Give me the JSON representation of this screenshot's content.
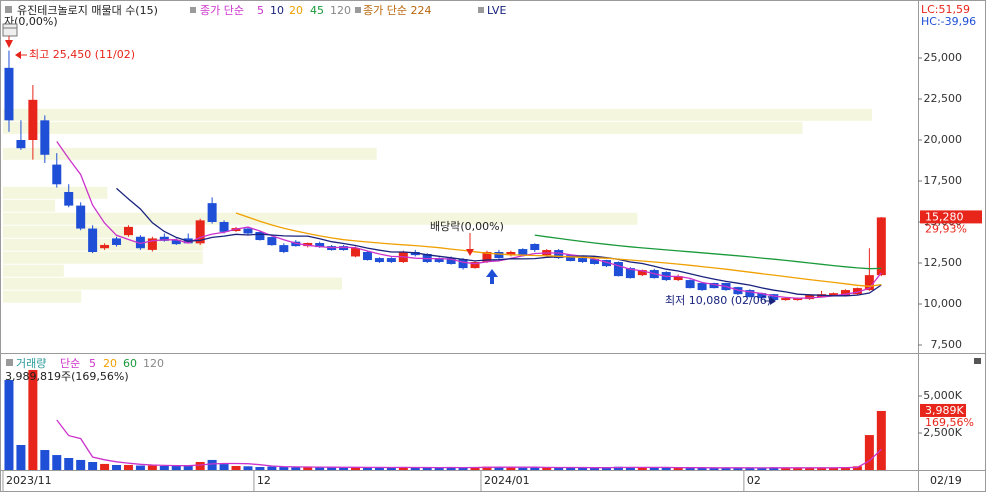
{
  "chart_data": [
    {
      "type": "candlestick",
      "title": "유진테크놀로지 매물대 수(15)",
      "legend_prefix": "종가 단순",
      "up_color": "#e8251b",
      "down_color": "#1e4fd6",
      "ylim": [
        7073,
        28537
      ],
      "yticks": [
        {
          "value": 7500,
          "label": "7,500"
        },
        {
          "value": 10000,
          "label": "10,000"
        },
        {
          "value": 12500,
          "label": "12,500"
        },
        {
          "value": 15000,
          "label": "15,000"
        },
        {
          "value": 17500,
          "label": "17,500"
        },
        {
          "value": 20000,
          "label": "20,000"
        },
        {
          "value": 22500,
          "label": "22,500"
        },
        {
          "value": 25000,
          "label": "25,000"
        }
      ],
      "open": [
        24400,
        20000,
        20000,
        21200,
        18500,
        16830,
        16000,
        14600,
        13400,
        14000,
        14200,
        14100,
        13300,
        14100,
        13900,
        14000,
        13700,
        16150,
        15000,
        14450,
        14600,
        14390,
        14080,
        13590,
        13800,
        13530,
        13720,
        13530,
        13530,
        12900,
        13170,
        12800,
        12800,
        12560,
        13170,
        13050,
        12800,
        12800,
        12740,
        12190,
        12560,
        13170,
        12980,
        13350,
        13660,
        12980,
        13290,
        12980,
        12800,
        12740,
        12680,
        12560,
        12190,
        11760,
        12070,
        11950,
        11460,
        11460,
        11280,
        11280,
        11280,
        11030,
        10850,
        10660,
        10600,
        10240,
        10240,
        10300,
        10420,
        10540,
        10480,
        10600,
        10850,
        11760
      ],
      "high": [
        25450,
        21200,
        23350,
        21500,
        19200,
        17300,
        16200,
        14800,
        13700,
        14100,
        14800,
        14200,
        14100,
        14300,
        14000,
        14300,
        15200,
        16500,
        15100,
        14700,
        14700,
        14450,
        14100,
        13700,
        13900,
        13750,
        13800,
        13600,
        13600,
        13500,
        13250,
        12850,
        12850,
        13250,
        13300,
        13100,
        12850,
        12900,
        12800,
        12600,
        13250,
        13300,
        13250,
        13400,
        13700,
        13350,
        13350,
        13000,
        12850,
        12800,
        12700,
        12600,
        12250,
        12100,
        12150,
        12000,
        11800,
        11500,
        11300,
        11300,
        11300,
        11050,
        10900,
        10700,
        10620,
        10400,
        10400,
        10600,
        10800,
        10700,
        10900,
        11000,
        13400,
        15300
      ],
      "low": [
        20500,
        19400,
        18800,
        18600,
        17100,
        15900,
        14500,
        13100,
        13300,
        13500,
        14100,
        13300,
        13200,
        13800,
        13600,
        13700,
        13600,
        14900,
        14300,
        14400,
        14200,
        13870,
        13550,
        13100,
        13500,
        13450,
        13420,
        13250,
        13250,
        12850,
        12650,
        12500,
        12500,
        12500,
        12900,
        12500,
        12500,
        12400,
        12100,
        12150,
        12500,
        12750,
        12900,
        12900,
        13170,
        12900,
        12750,
        12600,
        12500,
        12400,
        12250,
        11680,
        11550,
        11700,
        11550,
        11400,
        11400,
        10950,
        10800,
        10950,
        10800,
        10550,
        10400,
        10300,
        10080,
        10200,
        10200,
        10250,
        10400,
        10500,
        10450,
        10580,
        10800,
        11700
      ],
      "close": [
        21200,
        19500,
        22450,
        19100,
        17300,
        16000,
        14600,
        13170,
        13600,
        13600,
        14700,
        13400,
        14000,
        13850,
        13650,
        13700,
        15100,
        15000,
        14400,
        14630,
        14300,
        13900,
        13590,
        13170,
        13530,
        13720,
        13470,
        13290,
        13290,
        13410,
        12680,
        12560,
        12560,
        13170,
        12980,
        12560,
        12560,
        12440,
        12190,
        12560,
        13170,
        12800,
        13170,
        12980,
        13290,
        13290,
        12800,
        12620,
        12560,
        12440,
        12310,
        11700,
        11580,
        12070,
        11580,
        11460,
        11700,
        10970,
        10850,
        10970,
        10850,
        10600,
        10420,
        10360,
        10240,
        10360,
        10360,
        10540,
        10600,
        10660,
        10850,
        10970,
        11760,
        15280
      ],
      "lines": [
        {
          "name": "5",
          "color": "#cc33cc",
          "values": [
            null,
            null,
            null,
            null,
            19910,
            18870,
            17890,
            16030,
            14930,
            14190,
            13930,
            13690,
            13860,
            13910,
            13920,
            13720,
            14060,
            14260,
            14370,
            14570,
            14690,
            14450,
            14160,
            13920,
            13700,
            13580,
            13500,
            13440,
            13460,
            13440,
            13230,
            13050,
            12900,
            12880,
            12790,
            12770,
            12770,
            12740,
            12550,
            12460,
            12580,
            12630,
            12780,
            12940,
            13080,
            13110,
            13110,
            13000,
            12910,
            12740,
            12550,
            12330,
            12120,
            12020,
            11850,
            11680,
            11680,
            11560,
            11310,
            11190,
            11070,
            10850,
            10740,
            10640,
            10490,
            10400,
            10350,
            10370,
            10420,
            10500,
            10600,
            10720,
            10970,
            11900
          ]
        },
        {
          "name": "10",
          "color": "#1a237e",
          "values": [
            null,
            null,
            null,
            null,
            null,
            null,
            null,
            null,
            null,
            17050,
            16400,
            15790,
            14950,
            14420,
            14060,
            13830,
            13880,
            14060,
            14140,
            14250,
            14210,
            14260,
            14210,
            14150,
            14140,
            14140,
            13980,
            13800,
            13690,
            13570,
            13410,
            13280,
            13170,
            13170,
            13120,
            13000,
            12910,
            12820,
            12720,
            12630,
            12680,
            12700,
            12760,
            12750,
            12770,
            12850,
            12870,
            12890,
            12930,
            12910,
            12830,
            12720,
            12560,
            12470,
            12300,
            12120,
            12010,
            11840,
            11670,
            11520,
            11380,
            11270,
            11150,
            10980,
            10840,
            10740,
            10600,
            10560,
            10530,
            10500,
            10500,
            10540,
            10670,
            11160
          ]
        },
        {
          "name": "20",
          "color": "#f0a000",
          "values": [
            null,
            null,
            null,
            null,
            null,
            null,
            null,
            null,
            null,
            null,
            null,
            null,
            null,
            null,
            null,
            null,
            null,
            null,
            null,
            15550,
            15300,
            15050,
            14820,
            14620,
            14450,
            14300,
            14150,
            14030,
            13920,
            13850,
            13780,
            13720,
            13660,
            13610,
            13560,
            13500,
            13430,
            13350,
            13270,
            13180,
            13100,
            13050,
            13000,
            12980,
            12960,
            12940,
            12910,
            12880,
            12850,
            12820,
            12790,
            12740,
            12680,
            12620,
            12560,
            12500,
            12430,
            12360,
            12280,
            12200,
            12120,
            12030,
            11940,
            11850,
            11760,
            11670,
            11580,
            11490,
            11400,
            11320,
            11230,
            11140,
            11080,
            11180
          ]
        },
        {
          "name": "45",
          "color": "#1a9a3a",
          "values": [
            null,
            null,
            null,
            null,
            null,
            null,
            null,
            null,
            null,
            null,
            null,
            null,
            null,
            null,
            null,
            null,
            null,
            null,
            null,
            null,
            null,
            null,
            null,
            null,
            null,
            null,
            null,
            null,
            null,
            null,
            null,
            null,
            null,
            null,
            null,
            null,
            null,
            null,
            null,
            null,
            null,
            null,
            null,
            null,
            14200,
            14100,
            14000,
            13900,
            13810,
            13720,
            13640,
            13560,
            13490,
            13420,
            13360,
            13300,
            13240,
            13180,
            13120,
            13060,
            13000,
            12940,
            12870,
            12800,
            12730,
            12660,
            12580,
            12500,
            12420,
            12340,
            12270,
            12200,
            12150,
            12170
          ]
        }
      ],
      "inactive_legend": [
        {
          "name": "120",
          "color": "#888888"
        },
        {
          "name": "종가 단순 224",
          "color": "#b8660b"
        },
        {
          "name": "LVE",
          "color": "#1a237e"
        }
      ],
      "volume_profile": {
        "color": "#f4f7dd",
        "bins": [
          10080,
          10872,
          11664,
          12456,
          13248,
          14040,
          14832,
          15624,
          16416,
          17208,
          18000,
          18792,
          19584,
          20376,
          21168,
          21960
        ],
        "values": [
          9,
          39,
          7,
          23,
          23,
          15,
          73,
          6,
          12,
          0,
          0,
          43,
          0,
          92,
          100
        ]
      },
      "annotations": {
        "change": "자(0,00%)",
        "high": "최고 25,450 (11/02)",
        "dividend": "배당락(0,00%)",
        "low": "최저 10,080 (02/06)"
      },
      "stats": {
        "lc": "LC:51,59",
        "hc": "HC:-39,96"
      },
      "last_label": {
        "value": 15280,
        "label": "15,280"
      },
      "last_change": "29,93%"
    },
    {
      "type": "bar",
      "categories": [
        "2023/11",
        null,
        null,
        null,
        null,
        null,
        null,
        null,
        null,
        null,
        null,
        null,
        null,
        null,
        null,
        null,
        null,
        null,
        null,
        null,
        null,
        "12",
        null,
        null,
        null,
        null,
        null,
        null,
        null,
        null,
        null,
        null,
        null,
        null,
        null,
        null,
        null,
        null,
        null,
        null,
        "2024/01",
        null,
        null,
        null,
        null,
        null,
        null,
        null,
        null,
        null,
        null,
        null,
        null,
        null,
        null,
        null,
        null,
        null,
        null,
        null,
        null,
        null,
        "02",
        null,
        null,
        null,
        null,
        null,
        null,
        null,
        null,
        null,
        null,
        null
      ],
      "x_end_label": "02/19",
      "legend_title": "거래량",
      "legend_title_color": "#2a9a9a",
      "legend_prefix": "단순",
      "values": [
        6080,
        1690,
        6760,
        1350,
        1010,
        810,
        680,
        540,
        410,
        340,
        340,
        300,
        300,
        270,
        270,
        300,
        540,
        680,
        400,
        270,
        250,
        200,
        230,
        200,
        180,
        200,
        170,
        180,
        170,
        200,
        170,
        160,
        150,
        190,
        160,
        170,
        150,
        160,
        170,
        190,
        230,
        180,
        170,
        160,
        200,
        170,
        160,
        150,
        160,
        150,
        150,
        220,
        200,
        150,
        160,
        150,
        150,
        160,
        150,
        140,
        150,
        140,
        150,
        140,
        180,
        130,
        140,
        150,
        150,
        160,
        200,
        250,
        2360,
        3989
      ],
      "ylim": [
        0,
        7703
      ],
      "yticks": [
        {
          "value": 2500,
          "label": "2,500K"
        },
        {
          "value": 5000,
          "label": "5,000K"
        }
      ],
      "lines": [
        {
          "name": "5",
          "color": "#cc33cc",
          "values": [
            null,
            null,
            null,
            null,
            3378,
            2324,
            2122,
            878,
            690,
            556,
            462,
            386,
            338,
            310,
            296,
            288,
            336,
            412,
            438,
            438,
            428,
            360,
            270,
            230,
            212,
            202,
            196,
            186,
            180,
            184,
            178,
            176,
            170,
            174,
            166,
            166,
            164,
            166,
            162,
            168,
            180,
            186,
            188,
            186,
            188,
            176,
            172,
            168,
            168,
            158,
            154,
            166,
            176,
            174,
            176,
            176,
            162,
            154,
            154,
            150,
            150,
            148,
            146,
            144,
            152,
            148,
            148,
            148,
            150,
            146,
            160,
            182,
            624,
            1392
          ]
        }
      ],
      "inactive_legend": [
        {
          "name": "20",
          "color": "#f0a000"
        },
        {
          "name": "60",
          "color": "#1a9a3a"
        },
        {
          "name": "120",
          "color": "#888888"
        }
      ],
      "info": "3,989,819주(169,56%)",
      "last_label": {
        "value": 3989,
        "label": "3,989K"
      },
      "last_change": "169,56%"
    }
  ]
}
